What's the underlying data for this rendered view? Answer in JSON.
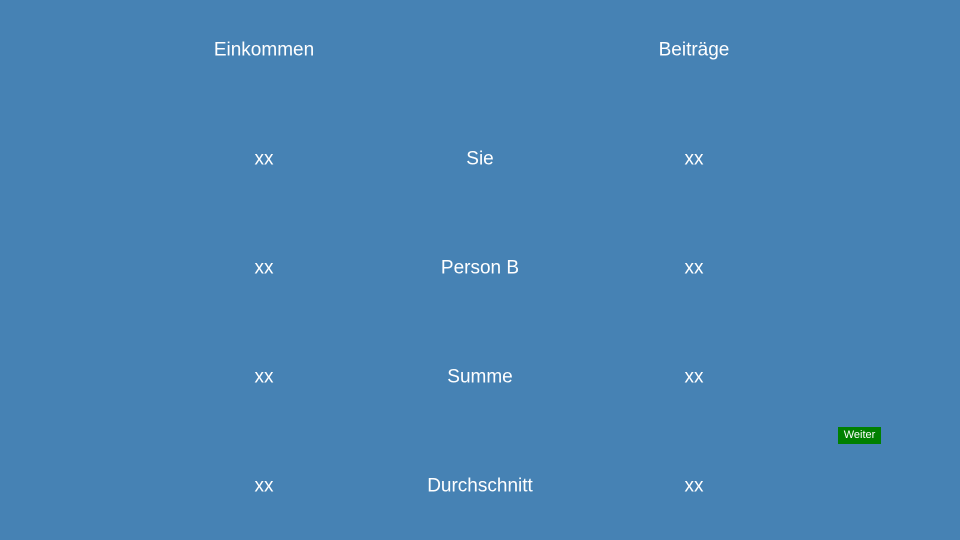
{
  "headers": {
    "income": "Einkommen",
    "contributions": "Beiträge"
  },
  "rows": [
    {
      "label": "Sie",
      "income": "xx",
      "contribution": "xx"
    },
    {
      "label": "Person B",
      "income": "xx",
      "contribution": "xx"
    },
    {
      "label": "Summe",
      "income": "xx",
      "contribution": "xx"
    },
    {
      "label": "Durchschnitt",
      "income": "xx",
      "contribution": "xx"
    }
  ],
  "next_button": {
    "label": "Weiter"
  },
  "colors": {
    "background": "#4682b4",
    "text": "#ffffff",
    "button": "#008000"
  }
}
